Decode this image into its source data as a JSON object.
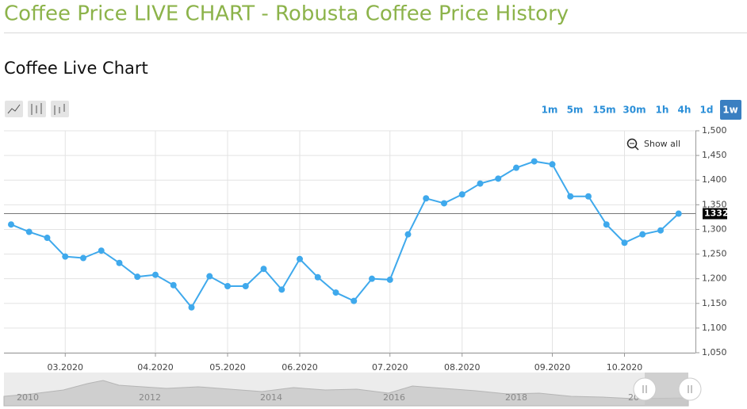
{
  "header": {
    "title": "Coffee Price LIVE CHART - Robusta Coffee Price History"
  },
  "section_title": "Coffee Live Chart",
  "toolbar": {
    "timeframes": [
      "1m",
      "5m",
      "15m",
      "30m",
      "1h",
      "4h",
      "1d",
      "1w"
    ],
    "active_timeframe": 7
  },
  "show_all": "Show all",
  "chart_data": {
    "type": "line",
    "categories": [
      null,
      null,
      null,
      "03.2020",
      null,
      null,
      null,
      null,
      "04.2020",
      null,
      null,
      null,
      "05.2020",
      null,
      null,
      null,
      "06.2020",
      null,
      null,
      null,
      null,
      "07.2020",
      null,
      null,
      null,
      "08.2020",
      null,
      null,
      null,
      null,
      "09.2020",
      null,
      null,
      null,
      "10.2020",
      null,
      null,
      null
    ],
    "values": [
      1310,
      1295,
      1283,
      1245,
      1242,
      1257,
      1232,
      1204,
      1208,
      1187,
      1142,
      1205,
      1185,
      1185,
      1220,
      1178,
      1240,
      1203,
      1172,
      1155,
      1200,
      1198,
      1290,
      1363,
      1353,
      1371,
      1393,
      1403,
      1425,
      1438,
      1432,
      1367,
      1367,
      1310,
      1273,
      1290,
      1298,
      1332
    ],
    "color": "#3fa9ec",
    "ylim": [
      1050,
      1500
    ],
    "yticks": [
      {
        "value": 1050,
        "label": "1,050"
      },
      {
        "value": 1100,
        "label": "1,100"
      },
      {
        "value": 1150,
        "label": "1,150"
      },
      {
        "value": 1200,
        "label": "1,200"
      },
      {
        "value": 1250,
        "label": "1,250"
      },
      {
        "value": 1300,
        "label": "1,300"
      },
      {
        "value": 1350,
        "label": "1,350"
      },
      {
        "value": 1400,
        "label": "1,400"
      },
      {
        "value": 1450,
        "label": "1,450"
      },
      {
        "value": 1500,
        "label": "1,500"
      }
    ],
    "grid": true,
    "last_value": 1332
  },
  "navigator": {
    "labels": [
      "2010",
      "2012",
      "2014",
      "2016",
      "2018",
      "20"
    ]
  }
}
